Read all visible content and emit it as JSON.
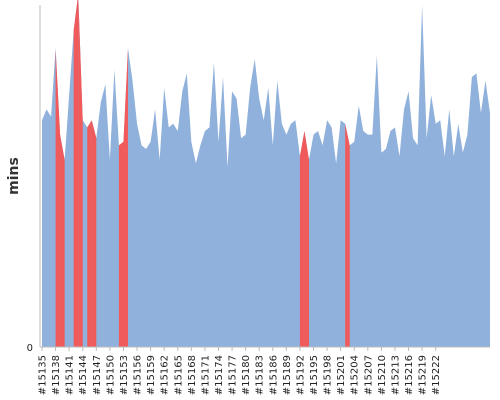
{
  "chart_data": {
    "type": "area",
    "ylabel": "mins",
    "ytick_labels": [
      "0"
    ],
    "y0_label": "0",
    "ylim": [
      0,
      95
    ],
    "grid": false,
    "legend": "none",
    "colors": {
      "base": "#8fb1dc",
      "highlight": "#f05a5a"
    },
    "x_start_id": 15135,
    "x_tick_every": 3,
    "x_tick_labels": [
      "#15135",
      "#15138",
      "#15141",
      "#15144",
      "#15147",
      "#15150",
      "#15153",
      "#15156",
      "#15159",
      "#15162",
      "#15165",
      "#15168",
      "#15171",
      "#15174",
      "#15177",
      "#15180",
      "#15183",
      "#15186",
      "#15189",
      "#15192",
      "#15195",
      "#15198",
      "#15201",
      "#15204",
      "#15207",
      "#15210",
      "#15213",
      "#15216",
      "#15219",
      "#15222"
    ],
    "series": [
      {
        "values": [
          63,
          66,
          64,
          83,
          59,
          52,
          70,
          88,
          98,
          63,
          61,
          63,
          58,
          68,
          73,
          52,
          77,
          56,
          57,
          83,
          74,
          62,
          56,
          55,
          57,
          66,
          52,
          72,
          61,
          62,
          60,
          71,
          76,
          57,
          51,
          56,
          60,
          61,
          79,
          57,
          75,
          50,
          71,
          69,
          58,
          59,
          72,
          80,
          69,
          63,
          72,
          56,
          74,
          62,
          59,
          62,
          63,
          53,
          60,
          52,
          59,
          60,
          56,
          63,
          61,
          51,
          63,
          62,
          56,
          57,
          67,
          60,
          59,
          59,
          81,
          54,
          55,
          60,
          61,
          53,
          66,
          71,
          58,
          56,
          95,
          58,
          70,
          62,
          63,
          53,
          66,
          53,
          62,
          54,
          59,
          75,
          76,
          65,
          74,
          65
        ],
        "highlight_indices": [
          3,
          4,
          7,
          8,
          10,
          11,
          17,
          18,
          57,
          58,
          67
        ]
      }
    ]
  }
}
